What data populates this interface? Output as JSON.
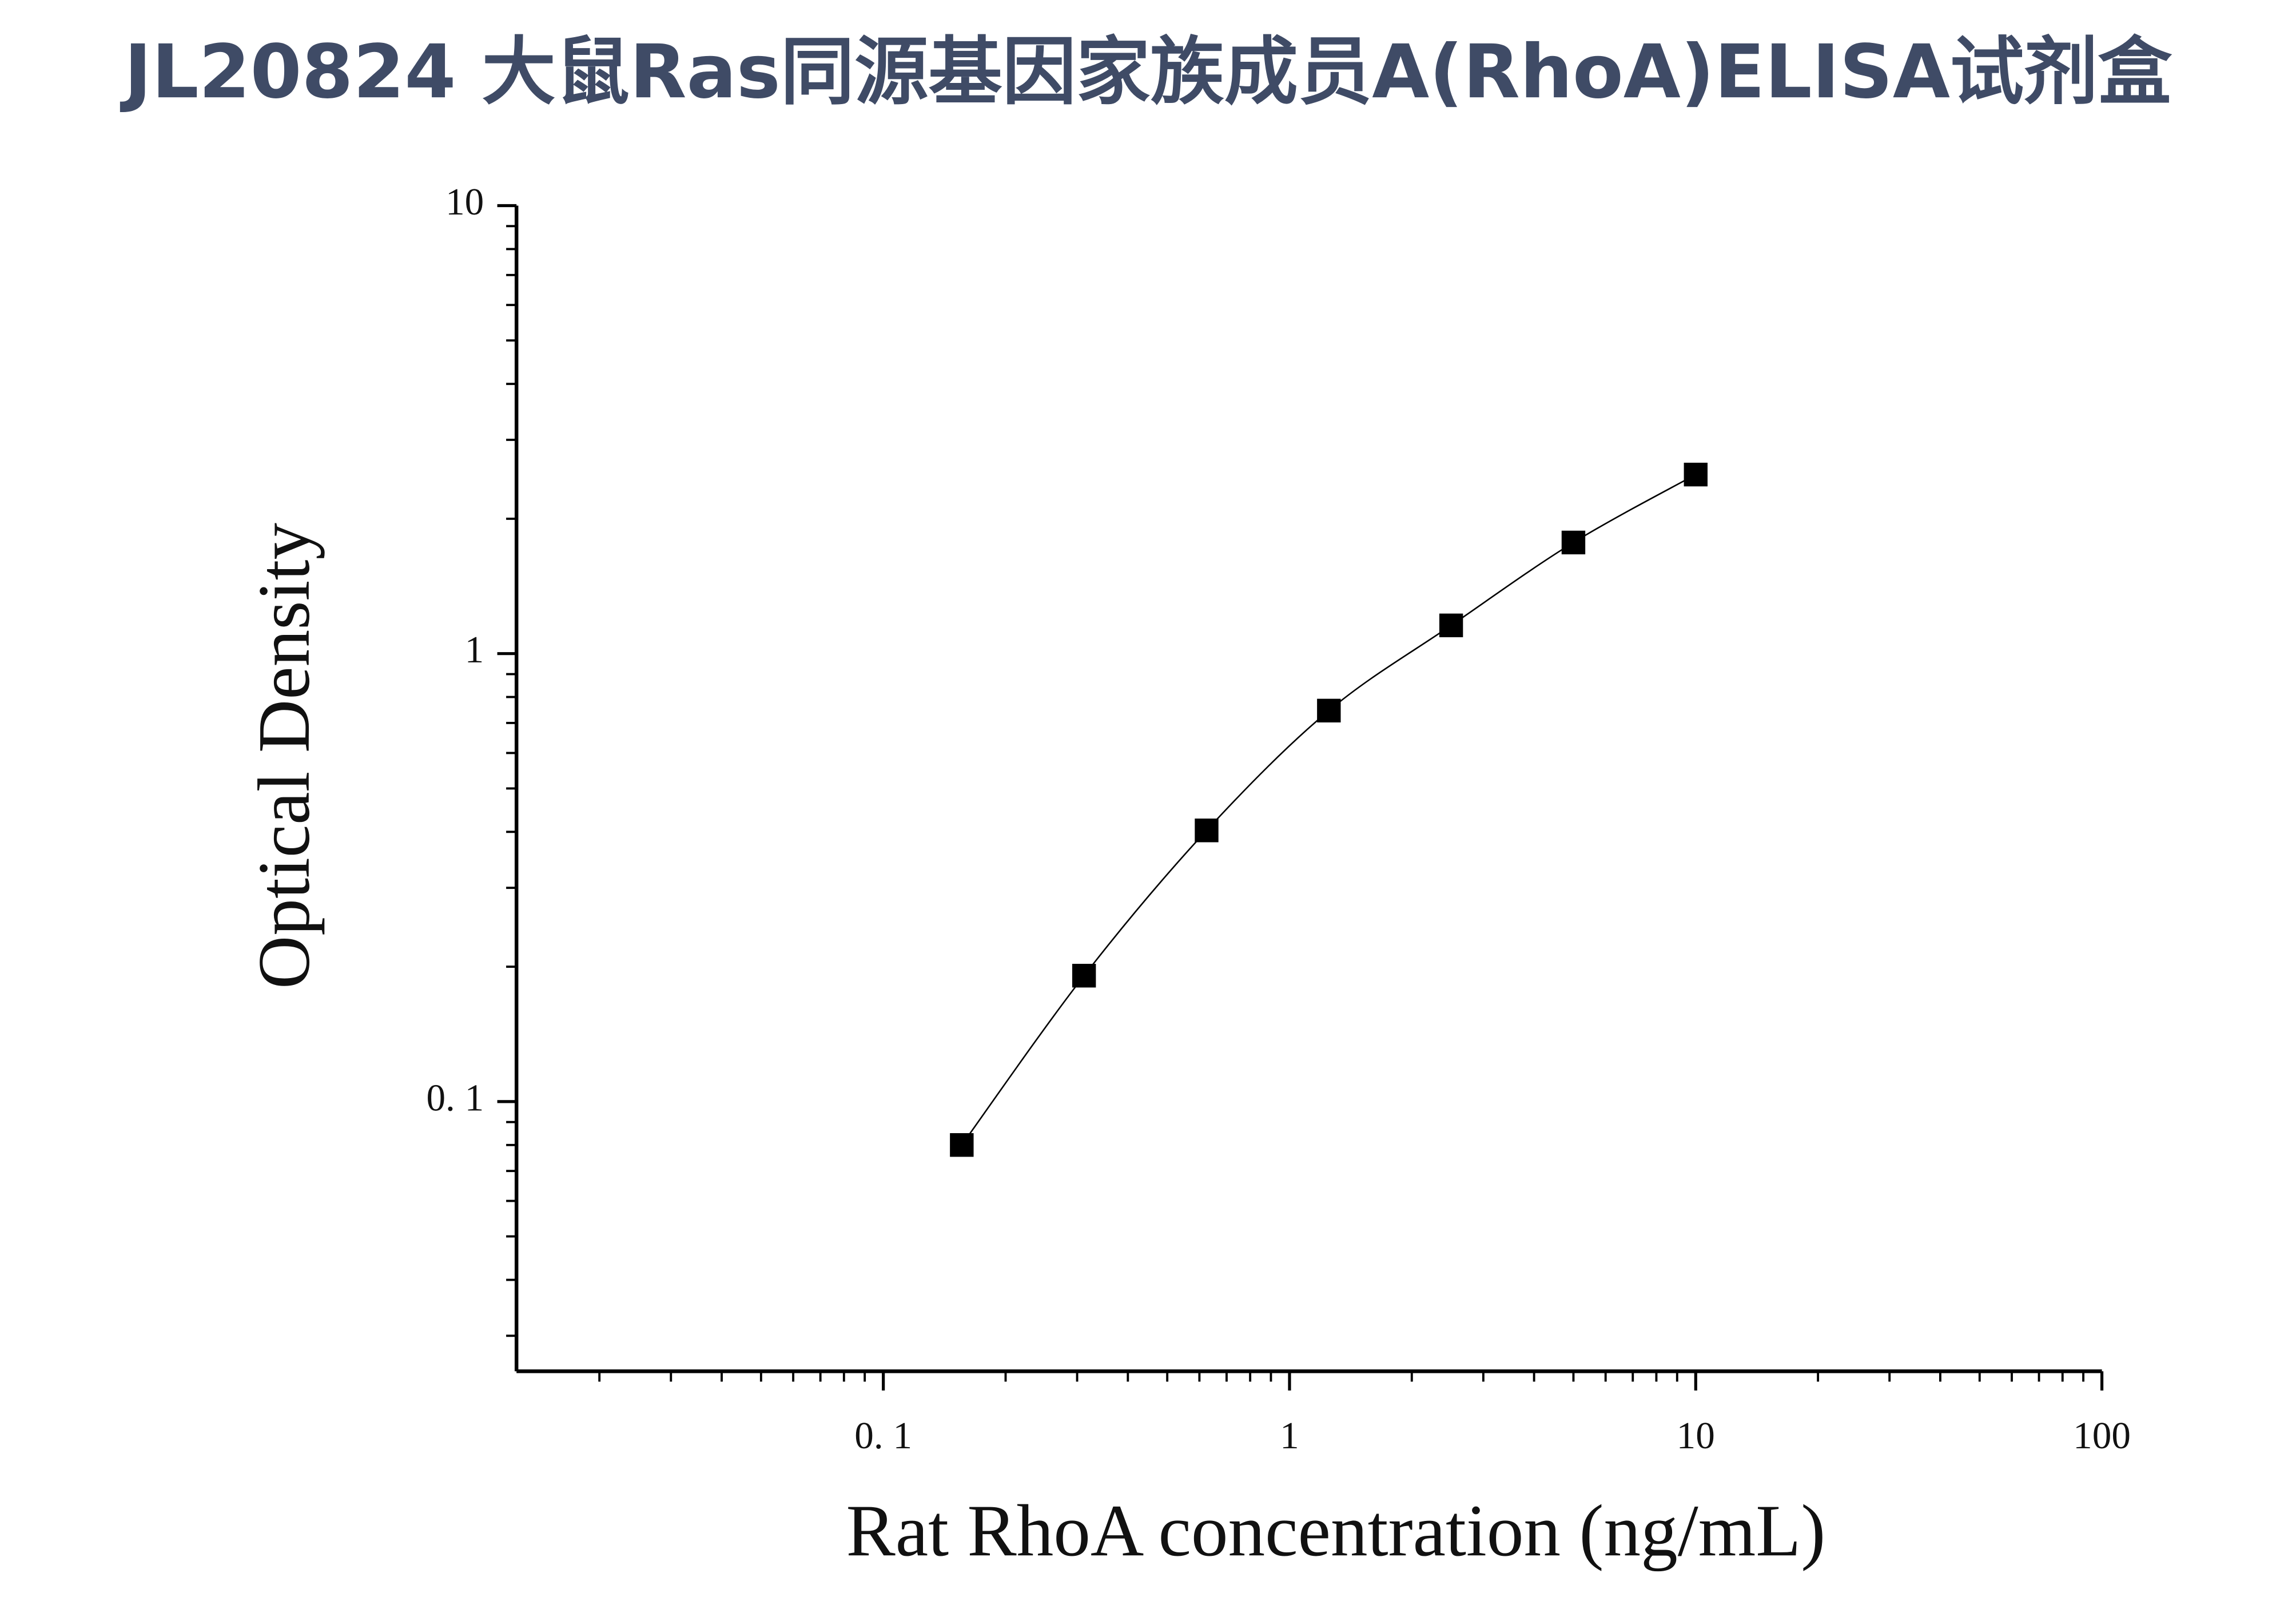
{
  "chart_data": {
    "type": "scatter",
    "title": "JL20824 大鼠Ras同源基因家族成员A(RhoA)ELISA试剂盒",
    "x_label": "Rat RhoA concentration (ng/mL)",
    "y_label": "Optical Density",
    "x": [
      0.156,
      0.312,
      0.625,
      1.25,
      2.5,
      5,
      10
    ],
    "series": [
      {
        "color": "#000000",
        "values": [
          0.08,
          0.191,
          0.403,
          0.746,
          1.156,
          1.77,
          2.51
        ]
      }
    ],
    "xlim": [
      0.0125,
      100
    ],
    "ylim": [
      0.025,
      10
    ],
    "xticks": [
      {
        "value": 0.1,
        "label": "0. 1"
      },
      1,
      10,
      100
    ],
    "yticks": [
      {
        "value": 0.1,
        "label": "0. 1"
      },
      1,
      10
    ],
    "xscale": "log",
    "yscale": "log",
    "minor_ticks": true,
    "fit_curve": true
  }
}
